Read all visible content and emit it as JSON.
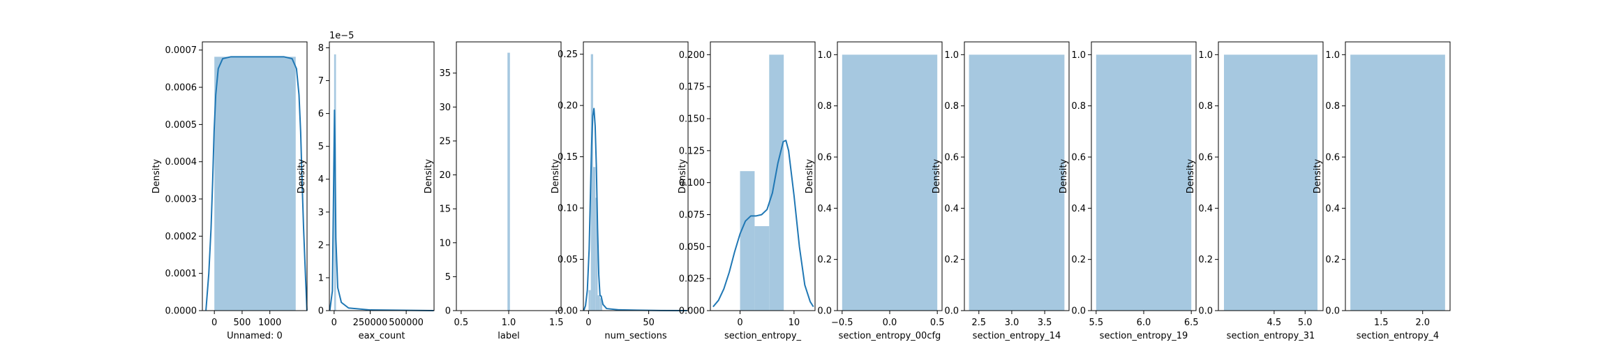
{
  "chart_data": [
    {
      "type": "histogram",
      "xlabel": "Unnamed: 0",
      "ylabel": "Density",
      "xlim": [
        -216,
        1670
      ],
      "ylim": [
        0,
        0.000722
      ],
      "xticks": [
        0,
        500,
        1000
      ],
      "xtick_labels": [
        "0",
        "500",
        "1000"
      ],
      "yticks": [
        0,
        0.0001,
        0.0002,
        0.0003,
        0.0004,
        0.0005,
        0.0006,
        0.0007
      ],
      "ytick_labels": [
        "0.0000",
        "0.0001",
        "0.0002",
        "0.0003",
        "0.0004",
        "0.0005",
        "0.0006",
        "0.0007"
      ],
      "offset_text": "",
      "bars": [
        {
          "x0": 0,
          "x1": 1466,
          "y": 0.000682
        }
      ],
      "kde": [
        [
          -152,
          0
        ],
        [
          -100,
          0.0001
        ],
        [
          -60,
          0.00022
        ],
        [
          -30,
          0.00035
        ],
        [
          -5,
          0.00048
        ],
        [
          25,
          0.00058
        ],
        [
          70,
          0.00065
        ],
        [
          150,
          0.000677
        ],
        [
          300,
          0.000682
        ],
        [
          800,
          0.000682
        ],
        [
          1250,
          0.000682
        ],
        [
          1400,
          0.000677
        ],
        [
          1480,
          0.00065
        ],
        [
          1525,
          0.00058
        ],
        [
          1555,
          0.00048
        ],
        [
          1580,
          0.00035
        ],
        [
          1608,
          0.00022
        ],
        [
          1640,
          0.0001
        ],
        [
          1668,
          0
        ]
      ]
    },
    {
      "type": "histogram",
      "xlabel": "eax_count",
      "ylabel": "Density",
      "xlim": [
        -33000,
        693000
      ],
      "ylim": [
        0,
        8.18e-05
      ],
      "xticks": [
        0,
        250000,
        500000
      ],
      "xtick_labels": [
        "0",
        "250000",
        "500000"
      ],
      "yticks": [
        0,
        1e-05,
        2e-05,
        3e-05,
        4e-05,
        5e-05,
        6e-05,
        7e-05,
        8e-05
      ],
      "ytick_labels": [
        "0",
        "1",
        "2",
        "3",
        "4",
        "5",
        "6",
        "7",
        "8"
      ],
      "offset_text": "1e−5",
      "bars": [
        {
          "x0": 0,
          "x1": 13000,
          "y": 7.8e-05
        }
      ],
      "kde": [
        [
          -30000,
          0
        ],
        [
          -12000,
          6e-06
        ],
        [
          -3000,
          4e-05
        ],
        [
          2500,
          6.1e-05
        ],
        [
          6000,
          5e-05
        ],
        [
          12000,
          2.2e-05
        ],
        [
          25000,
          7e-06
        ],
        [
          50000,
          2.5e-06
        ],
        [
          100000,
          8e-07
        ],
        [
          250000,
          2e-07
        ],
        [
          690000,
          0
        ]
      ]
    },
    {
      "type": "histogram",
      "xlabel": "label",
      "ylabel": "Density",
      "xlim": [
        0.45,
        1.55
      ],
      "ylim": [
        0,
        39.6
      ],
      "xticks": [
        0.5,
        1.0,
        1.5
      ],
      "xtick_labels": [
        "0.5",
        "1.0",
        "1.5"
      ],
      "yticks": [
        0,
        5,
        10,
        15,
        20,
        25,
        30,
        35
      ],
      "ytick_labels": [
        "0",
        "5",
        "10",
        "15",
        "20",
        "25",
        "30",
        "35"
      ],
      "offset_text": "",
      "bars": [
        {
          "x0": 0.987,
          "x1": 1.013,
          "y": 38
        }
      ],
      "kde": []
    },
    {
      "type": "histogram",
      "xlabel": "num_sections",
      "ylabel": "Density",
      "xlim": [
        -4.3,
        82.7
      ],
      "ylim": [
        0,
        0.262
      ],
      "xticks": [
        0,
        50
      ],
      "xtick_labels": [
        "0",
        "50"
      ],
      "yticks": [
        0,
        0.05,
        0.1,
        0.15,
        0.2,
        0.25
      ],
      "ytick_labels": [
        "0.00",
        "0.05",
        "0.10",
        "0.15",
        "0.20",
        "0.25"
      ],
      "offset_text": "",
      "bars": [
        {
          "x0": 0,
          "x1": 1.9,
          "y": 0.02
        },
        {
          "x0": 1.9,
          "x1": 3.8,
          "y": 0.25
        },
        {
          "x0": 3.8,
          "x1": 5.7,
          "y": 0.14
        },
        {
          "x0": 5.7,
          "x1": 7.6,
          "y": 0.11
        },
        {
          "x0": 7.6,
          "x1": 9.5,
          "y": 0.015
        },
        {
          "x0": 9.5,
          "x1": 11.4,
          "y": 0.012
        }
      ],
      "kde": [
        [
          -4,
          0
        ],
        [
          -2.5,
          0.005
        ],
        [
          -1,
          0.02
        ],
        [
          0.5,
          0.06
        ],
        [
          1.5,
          0.11
        ],
        [
          2.5,
          0.16
        ],
        [
          3.5,
          0.19
        ],
        [
          4.5,
          0.197
        ],
        [
          5.5,
          0.18
        ],
        [
          6.5,
          0.14
        ],
        [
          7.5,
          0.08
        ],
        [
          8.5,
          0.035
        ],
        [
          9.5,
          0.015
        ],
        [
          10.5,
          0.014
        ],
        [
          12,
          0.006
        ],
        [
          15,
          0.002
        ],
        [
          25,
          0.0008
        ],
        [
          40,
          0.0004
        ],
        [
          60,
          0.0001
        ],
        [
          82,
          0
        ]
      ]
    },
    {
      "type": "histogram",
      "xlabel": "section_entropy_",
      "ylabel": "Density",
      "xlim": [
        -5.5,
        13.9
      ],
      "ylim": [
        0,
        0.21
      ],
      "xticks": [
        0,
        10
      ],
      "xtick_labels": [
        "0",
        "10"
      ],
      "yticks": [
        0,
        0.025,
        0.05,
        0.075,
        0.1,
        0.125,
        0.15,
        0.175,
        0.2
      ],
      "ytick_labels": [
        "0.000",
        "0.025",
        "0.050",
        "0.075",
        "0.100",
        "0.125",
        "0.150",
        "0.175",
        "0.200"
      ],
      "offset_text": "",
      "bars": [
        {
          "x0": 0,
          "x1": 2.7,
          "y": 0.109
        },
        {
          "x0": 2.7,
          "x1": 5.4,
          "y": 0.066
        },
        {
          "x0": 5.4,
          "x1": 8.1,
          "y": 0.2
        }
      ],
      "kde": [
        [
          -5,
          0.003
        ],
        [
          -4,
          0.008
        ],
        [
          -3,
          0.017
        ],
        [
          -2,
          0.03
        ],
        [
          -1,
          0.046
        ],
        [
          0,
          0.06
        ],
        [
          1,
          0.07
        ],
        [
          2,
          0.074
        ],
        [
          3,
          0.074
        ],
        [
          4,
          0.075
        ],
        [
          5,
          0.079
        ],
        [
          6,
          0.092
        ],
        [
          7,
          0.115
        ],
        [
          8,
          0.132
        ],
        [
          8.5,
          0.133
        ],
        [
          9,
          0.125
        ],
        [
          10,
          0.09
        ],
        [
          11,
          0.05
        ],
        [
          12,
          0.02
        ],
        [
          13,
          0.007
        ],
        [
          13.6,
          0.003
        ]
      ]
    },
    {
      "type": "histogram",
      "xlabel": "section_entropy_00cfg",
      "ylabel": "Density",
      "xlim": [
        -0.55,
        0.55
      ],
      "ylim": [
        0,
        1.05
      ],
      "xticks": [
        -0.5,
        0.0,
        0.5
      ],
      "xtick_labels": [
        "−0.5",
        "0.0",
        "0.5"
      ],
      "yticks": [
        0,
        0.2,
        0.4,
        0.6,
        0.8,
        1.0
      ],
      "ytick_labels": [
        "0.0",
        "0.2",
        "0.4",
        "0.6",
        "0.8",
        "1.0"
      ],
      "offset_text": "",
      "bars": [
        {
          "x0": -0.5,
          "x1": 0.5,
          "y": 1.0
        }
      ],
      "kde": []
    },
    {
      "type": "histogram",
      "xlabel": "section_entropy_14",
      "ylabel": "Density",
      "xlim": [
        2.28,
        3.87
      ],
      "ylim": [
        0,
        1.05
      ],
      "xticks": [
        2.5,
        3.0,
        3.5
      ],
      "xtick_labels": [
        "2.5",
        "3.0",
        "3.5"
      ],
      "yticks": [
        0,
        0.2,
        0.4,
        0.6,
        0.8,
        1.0
      ],
      "ytick_labels": [
        "0.0",
        "0.2",
        "0.4",
        "0.6",
        "0.8",
        "1.0"
      ],
      "offset_text": "",
      "bars": [
        {
          "x0": 2.35,
          "x1": 3.8,
          "y": 1.0
        }
      ],
      "kde": []
    },
    {
      "type": "histogram",
      "xlabel": "section_entropy_19",
      "ylabel": "Density",
      "xlim": [
        5.45,
        6.55
      ],
      "ylim": [
        0,
        1.05
      ],
      "xticks": [
        5.5,
        6.0,
        6.5
      ],
      "xtick_labels": [
        "5.5",
        "6.0",
        "6.5"
      ],
      "yticks": [
        0,
        0.2,
        0.4,
        0.6,
        0.8,
        1.0
      ],
      "ytick_labels": [
        "0.0",
        "0.2",
        "0.4",
        "0.6",
        "0.8",
        "1.0"
      ],
      "offset_text": "",
      "bars": [
        {
          "x0": 5.5,
          "x1": 6.5,
          "y": 1.0
        }
      ],
      "kde": []
    },
    {
      "type": "histogram",
      "xlabel": "section_entropy_31",
      "ylabel": "Density",
      "xlim": [
        3.6,
        5.29
      ],
      "ylim": [
        0,
        1.05
      ],
      "xticks": [
        4.5,
        5.0
      ],
      "xtick_labels": [
        "4.5",
        "5.0"
      ],
      "yticks": [
        0,
        0.2,
        0.4,
        0.6,
        0.8,
        1.0
      ],
      "ytick_labels": [
        "0.0",
        "0.2",
        "0.4",
        "0.6",
        "0.8",
        "1.0"
      ],
      "offset_text": "",
      "bars": [
        {
          "x0": 3.69,
          "x1": 5.2,
          "y": 1.0
        }
      ],
      "kde": []
    },
    {
      "type": "histogram",
      "xlabel": "section_entropy_4",
      "ylabel": "Density",
      "xlim": [
        1.07,
        2.33
      ],
      "ylim": [
        0,
        1.05
      ],
      "xticks": [
        1.5,
        2.0
      ],
      "xtick_labels": [
        "1.5",
        "2.0"
      ],
      "yticks": [
        0,
        0.2,
        0.4,
        0.6,
        0.8,
        1.0
      ],
      "ytick_labels": [
        "0.0",
        "0.2",
        "0.4",
        "0.6",
        "0.8",
        "1.0"
      ],
      "offset_text": "",
      "bars": [
        {
          "x0": 1.13,
          "x1": 2.27,
          "y": 1.0
        }
      ],
      "kde": []
    }
  ],
  "colors": {
    "bar_fill": "#a6c8e0",
    "kde_line": "#1f77b4",
    "axes": "#000000",
    "background": "#ffffff"
  }
}
